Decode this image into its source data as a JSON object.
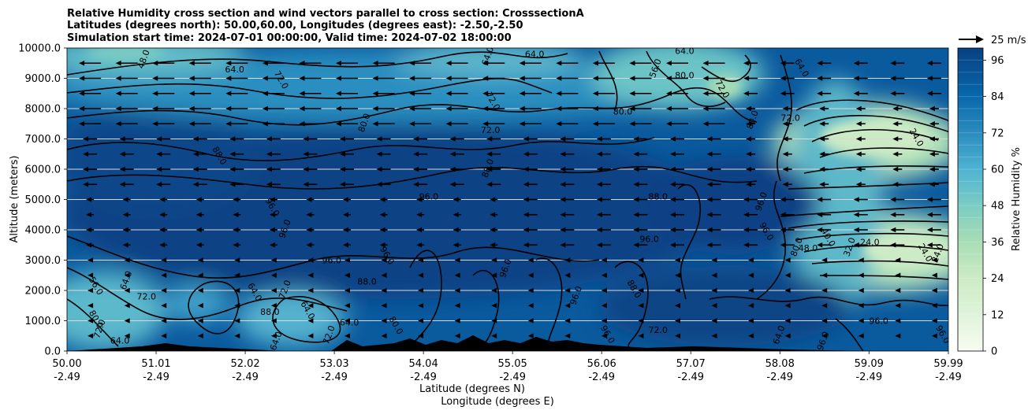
{
  "chart_data": {
    "type": "contour",
    "title_lines": [
      "Relative Humidity cross section and wind vectors parallel to cross section: CrosssectionA",
      "Latitudes (degrees north): 50.00,60.00, Longitudes (degrees east): -2.50,-2.50",
      "Simulation start time: 2024-07-01 00:00:00, Valid time: 2024-07-02 18:00:00"
    ],
    "ylabel": "Altitude (meters)",
    "xlabel_line1": "Latitude (degrees N)",
    "xlabel_line2": "Longitude (degrees E)",
    "ylim": [
      0,
      10000
    ],
    "xlim": [
      50.0,
      59.99
    ],
    "y_ticks": [
      "0.0",
      "1000.0",
      "2000.0",
      "3000.0",
      "4000.0",
      "5000.0",
      "6000.0",
      "7000.0",
      "8000.0",
      "9000.0",
      "10000.0"
    ],
    "x_ticks": [
      {
        "lat": "50.00",
        "lon": "-2.49"
      },
      {
        "lat": "51.01",
        "lon": "-2.49"
      },
      {
        "lat": "52.02",
        "lon": "-2.49"
      },
      {
        "lat": "53.03",
        "lon": "-2.49"
      },
      {
        "lat": "54.04",
        "lon": "-2.49"
      },
      {
        "lat": "55.05",
        "lon": "-2.49"
      },
      {
        "lat": "56.06",
        "lon": "-2.49"
      },
      {
        "lat": "57.07",
        "lon": "-2.49"
      },
      {
        "lat": "58.08",
        "lon": "-2.49"
      },
      {
        "lat": "59.09",
        "lon": "-2.49"
      },
      {
        "lat": "59.99",
        "lon": "-2.49"
      }
    ],
    "colorbar": {
      "label": "Relative Humidity %",
      "ticks": [
        "0",
        "12",
        "24",
        "36",
        "48",
        "60",
        "72",
        "84",
        "96"
      ],
      "range": [
        0,
        100
      ],
      "levels": 25
    },
    "quiver_key": "25 m/s",
    "grid": "horizontal lines",
    "contour_labels": [
      {
        "text": "48.0",
        "lat": 50.9,
        "alt": 9600
      },
      {
        "text": "64.0",
        "lat": 51.9,
        "alt": 9200
      },
      {
        "text": "72.0",
        "lat": 52.4,
        "alt": 8900
      },
      {
        "text": "64.0",
        "lat": 54.8,
        "alt": 9700
      },
      {
        "text": "64.0",
        "lat": 55.3,
        "alt": 9700
      },
      {
        "text": "72.0",
        "lat": 54.8,
        "alt": 8200
      },
      {
        "text": "80.0",
        "lat": 53.4,
        "alt": 7500
      },
      {
        "text": "72.0",
        "lat": 54.8,
        "alt": 7200
      },
      {
        "text": "88.0",
        "lat": 51.7,
        "alt": 6400
      },
      {
        "text": "88.0",
        "lat": 54.8,
        "alt": 6000
      },
      {
        "text": "96.0",
        "lat": 54.1,
        "alt": 5000
      },
      {
        "text": "96.0",
        "lat": 52.3,
        "alt": 4700
      },
      {
        "text": "96.0",
        "lat": 52.5,
        "alt": 4000
      },
      {
        "text": "96.0",
        "lat": 53.0,
        "alt": 2900
      },
      {
        "text": "96.0",
        "lat": 53.6,
        "alt": 3100
      },
      {
        "text": "96.0",
        "lat": 55.0,
        "alt": 2700
      },
      {
        "text": "88.0",
        "lat": 53.4,
        "alt": 2200
      },
      {
        "text": "56.0",
        "lat": 50.3,
        "alt": 2100
      },
      {
        "text": "64.0",
        "lat": 50.7,
        "alt": 2300
      },
      {
        "text": "72.0",
        "lat": 50.9,
        "alt": 1700
      },
      {
        "text": "80.0",
        "lat": 50.3,
        "alt": 1000
      },
      {
        "text": "72.0",
        "lat": 50.4,
        "alt": 700
      },
      {
        "text": "64.0",
        "lat": 50.6,
        "alt": 250
      },
      {
        "text": "64.0",
        "lat": 52.1,
        "alt": 1900
      },
      {
        "text": "72.0",
        "lat": 52.5,
        "alt": 2000
      },
      {
        "text": "88.0",
        "lat": 52.3,
        "alt": 1200
      },
      {
        "text": "64.0",
        "lat": 52.7,
        "alt": 1300
      },
      {
        "text": "72.0",
        "lat": 53.0,
        "alt": 500
      },
      {
        "text": "64.0",
        "lat": 53.2,
        "alt": 850
      },
      {
        "text": "80.0",
        "lat": 53.7,
        "alt": 800
      },
      {
        "text": "64.0",
        "lat": 52.4,
        "alt": 300
      },
      {
        "text": "80.0",
        "lat": 57.0,
        "alt": 9000
      },
      {
        "text": "72.0",
        "lat": 57.4,
        "alt": 8600
      },
      {
        "text": "56.0",
        "lat": 56.7,
        "alt": 9300
      },
      {
        "text": "64.0",
        "lat": 57.0,
        "alt": 9800
      },
      {
        "text": "64.0",
        "lat": 58.3,
        "alt": 9300
      },
      {
        "text": "80.0",
        "lat": 57.8,
        "alt": 7600
      },
      {
        "text": "72.0",
        "lat": 58.2,
        "alt": 7600
      },
      {
        "text": "24.0",
        "lat": 59.6,
        "alt": 7000
      },
      {
        "text": "96.0",
        "lat": 57.9,
        "alt": 4900
      },
      {
        "text": "88.0",
        "lat": 56.7,
        "alt": 5000
      },
      {
        "text": "96.0",
        "lat": 57.9,
        "alt": 3900
      },
      {
        "text": "80.0",
        "lat": 58.3,
        "alt": 3400
      },
      {
        "text": "48.0",
        "lat": 58.4,
        "alt": 3300
      },
      {
        "text": "40.0",
        "lat": 58.6,
        "alt": 3700
      },
      {
        "text": "32.0",
        "lat": 58.9,
        "alt": 3400
      },
      {
        "text": "24.0",
        "lat": 59.1,
        "alt": 3500
      },
      {
        "text": "24.0",
        "lat": 59.7,
        "alt": 3200
      },
      {
        "text": "24.0",
        "lat": 59.9,
        "alt": 3200
      },
      {
        "text": "96.0",
        "lat": 56.6,
        "alt": 3600
      },
      {
        "text": "88.0",
        "lat": 56.4,
        "alt": 2000
      },
      {
        "text": "96.0",
        "lat": 55.8,
        "alt": 1800
      },
      {
        "text": "96.0",
        "lat": 59.2,
        "alt": 900
      },
      {
        "text": "96.0",
        "lat": 59.9,
        "alt": 500
      },
      {
        "text": "96.0",
        "lat": 58.6,
        "alt": 300
      },
      {
        "text": "72.0",
        "lat": 56.7,
        "alt": 600
      },
      {
        "text": "96.0",
        "lat": 56.1,
        "alt": 500
      },
      {
        "text": "64.0",
        "lat": 58.1,
        "alt": 500
      },
      {
        "text": "80.0",
        "lat": 56.3,
        "alt": 7800
      }
    ]
  }
}
